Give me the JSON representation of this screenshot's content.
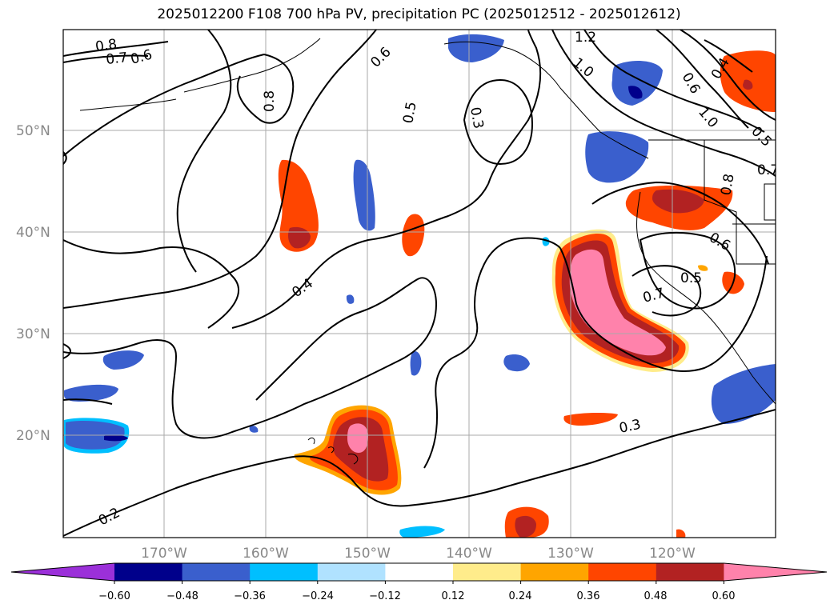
{
  "title": "2025012200 F108 700 hPa PV, precipitation PC (2025012512 - 2025012612)",
  "map": {
    "lat_labels": [
      "50°N",
      "40°N",
      "30°N",
      "20°N"
    ],
    "lon_labels": [
      "170°W",
      "160°W",
      "150°W",
      "140°W",
      "130°W",
      "120°W"
    ],
    "contour_labels": [
      "0.8",
      "0.7",
      "0.6",
      "0.8",
      "0.6",
      "0.5",
      "0.3",
      "1.2",
      "1.0",
      "0.4",
      "0.6",
      "1.0",
      "0.5",
      "0.7",
      "0.8",
      "0.6",
      "0.5",
      "0.7",
      "0.4",
      "0.3",
      "0.2"
    ]
  },
  "colorbar": {
    "colors": [
      "#9b30d9",
      "#00008b",
      "#3a5fcd",
      "#00bfff",
      "#b0e2ff",
      "#ffffff",
      "#ffec8b",
      "#ffa500",
      "#ff4500",
      "#b22222",
      "#ff82ab"
    ],
    "tick_labels": [
      "−0.60",
      "−0.48",
      "−0.36",
      "−0.24",
      "−0.12",
      "0.12",
      "0.24",
      "0.36",
      "0.48",
      "0.60"
    ]
  }
}
